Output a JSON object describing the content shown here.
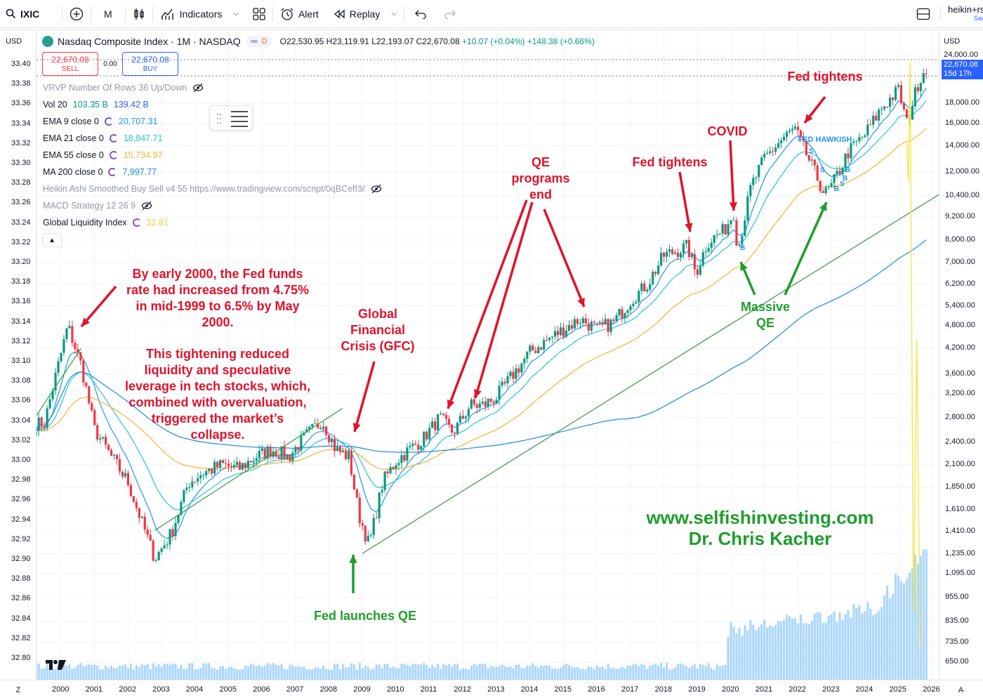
{
  "toolbar": {
    "symbol": "IXIC",
    "interval": "M",
    "indicators_label": "Indicators",
    "alert_label": "Alert",
    "replay_label": "Replay",
    "user_label": "heikin+rs",
    "save_label": "Sav"
  },
  "legend": {
    "title": "Nasdaq Composite Index · 1M · NASDAQ",
    "d_badge": "D",
    "open": "O22,530.95",
    "high": "H23,119.91",
    "low": "L22,193.07",
    "close": "C22,670.08",
    "change": "+10.07 (+0.04%)",
    "extra_change": "+148.38 (+0.66%)"
  },
  "trade": {
    "sell_price": "22,670.08",
    "sell_label": "SELL",
    "spread": "0.00",
    "buy_price": "22,670.08",
    "buy_label": "BUY"
  },
  "indicators": {
    "vrvp": "VRVP Number Of Rows 36 Up/Down",
    "vol_label": "Vol 20",
    "vol_v1": "103.35 B",
    "vol_v2": "139.42 B",
    "ema9_label": "EMA 9 close 0",
    "ema9_val": "20,707.31",
    "ema21_label": "EMA 21 close 0",
    "ema21_val": "18,847.71",
    "ema55_label": "EMA 55 close 0",
    "ema55_val": "15,734.97",
    "ma200_label": "MA 200 close 0",
    "ma200_val": "7,997.77",
    "heikin": "Heikin Ashi Smoothed Buy Sell v4 55 https://www.tradingview.com/script/0qBCefI3/",
    "macd": "MACD Strategy 12 26 9",
    "gli_label": "Global Liquidity Index",
    "gli_val": "32.81"
  },
  "colors": {
    "up": "#089981",
    "down": "#f23645",
    "ema9": "#2196f3",
    "ema21": "#26c6da",
    "ema55": "#f9b233",
    "ma200": "#1e88e5",
    "gli": "#f5e54a",
    "trend": "#43a047",
    "volume": "#90caf9",
    "annotation_red": "#e0132a",
    "annotation_green": "#1f9d2c"
  },
  "axis": {
    "left_unit": "USD",
    "right_unit": "USD",
    "left_ticks": [
      "33.40",
      "33.38",
      "33.36",
      "33.34",
      "33.32",
      "33.30",
      "33.28",
      "33.26",
      "33.24",
      "33.22",
      "33.20",
      "33.18",
      "33.16",
      "33.14",
      "33.12",
      "33.10",
      "33.08",
      "33.06",
      "33.04",
      "33.02",
      "33.00",
      "32.98",
      "32.96",
      "32.94",
      "32.92",
      "32.90",
      "32.88",
      "32.86",
      "32.84",
      "32.82",
      "32.80"
    ],
    "right_ticks": [
      "24,000.00",
      "18,000.00",
      "16,000.00",
      "14,000.00",
      "12,000.00",
      "10,400.00",
      "9,200.00",
      "8,000.00",
      "7,000.00",
      "6,200.00",
      "5,400.00",
      "4,800.00",
      "4,200.00",
      "3,600.00",
      "3,200.00",
      "2,800.00",
      "2,400.00",
      "2,100.00",
      "1,850.00",
      "1,610.00",
      "1,410.00",
      "1,235.00",
      "1,095.00",
      "955.00",
      "835.00",
      "735.00",
      "650.00"
    ],
    "years": [
      "2000",
      "2001",
      "2002",
      "2003",
      "2004",
      "2005",
      "2006",
      "2007",
      "2008",
      "2009",
      "2010",
      "2011",
      "2012",
      "2013",
      "2014",
      "2015",
      "2016",
      "2017",
      "2018",
      "2019",
      "2020",
      "2021",
      "2022",
      "2023",
      "2024",
      "2025",
      "2026"
    ],
    "corner_left": "Z",
    "corner_right": "A"
  },
  "price_tag": {
    "top_value": "24,000.00",
    "last_price": "22,670.08",
    "countdown": "15d 17h"
  },
  "annotations": {
    "fed_rate_1": "By early 2000, the Fed funds",
    "fed_rate_2": "rate had increased from 4.75%",
    "fed_rate_3": "in mid-1999 to 6.5% by May",
    "fed_rate_4": "2000.",
    "tight_1": "This tightening reduced",
    "tight_2": "liquidity and speculative",
    "tight_3": "leverage in tech stocks, which,",
    "tight_4": "combined with overvaluation,",
    "tight_5": "triggered the market’s",
    "tight_6": "collapse.",
    "gfc_1": "Global",
    "gfc_2": "Financial",
    "gfc_3": "Crisis (GFC)",
    "qe_end_1": "QE",
    "qe_end_2": "programs",
    "qe_end_3": "end",
    "fed_tightens_mid": "Fed tightens",
    "covid": "COVID",
    "fed_tightens_top": "Fed tightens",
    "fed_hawkish": "FED HAWKISH",
    "massive_1": "Massive",
    "massive_2": "QE",
    "fed_launches_qe": "Fed launches QE",
    "website": "www.selfishinvesting.com",
    "author": "Dr. Chris Kacher"
  },
  "chart_data": {
    "type": "line",
    "title": "Nasdaq Composite Index · 1M · NASDAQ",
    "y_scale": "log",
    "ylim": [
      650,
      24000
    ],
    "x": [
      1999.5,
      2000.2,
      2000.6,
      2001.0,
      2001.5,
      2002.0,
      2002.4,
      2002.8,
      2003.3,
      2003.8,
      2004.2,
      2004.8,
      2005.3,
      2005.8,
      2006.3,
      2006.8,
      2007.3,
      2007.8,
      2008.2,
      2008.6,
      2008.9,
      2009.2,
      2009.6,
      2010.0,
      2010.4,
      2010.8,
      2011.3,
      2011.7,
      2012.2,
      2012.6,
      2013.0,
      2013.5,
      2014.0,
      2014.5,
      2015.0,
      2015.5,
      2016.0,
      2016.5,
      2017.0,
      2017.5,
      2018.0,
      2018.7,
      2018.95,
      2019.3,
      2019.8,
      2020.1,
      2020.2,
      2020.6,
      2021.0,
      2021.5,
      2021.9,
      2022.4,
      2022.8,
      2023.0,
      2023.5,
      2024.0,
      2024.5,
      2025.0,
      2025.25,
      2025.6,
      2025.85
    ],
    "series": [
      {
        "name": "Nasdaq Composite Index",
        "values": [
          2700,
          4800,
          3800,
          2600,
          2200,
          1900,
          1500,
          1200,
          1400,
          1900,
          2000,
          2100,
          2050,
          2200,
          2300,
          2200,
          2500,
          2750,
          2300,
          2200,
          1550,
          1300,
          1900,
          2150,
          2300,
          2450,
          2800,
          2550,
          3000,
          3000,
          3150,
          3600,
          4100,
          4400,
          4700,
          5000,
          4700,
          4900,
          5600,
          6200,
          7300,
          7700,
          6600,
          7900,
          8500,
          9500,
          7500,
          11000,
          13000,
          14500,
          15500,
          12500,
          10500,
          11000,
          13500,
          15000,
          17500,
          19500,
          16000,
          20500,
          22670
        ]
      }
    ]
  }
}
